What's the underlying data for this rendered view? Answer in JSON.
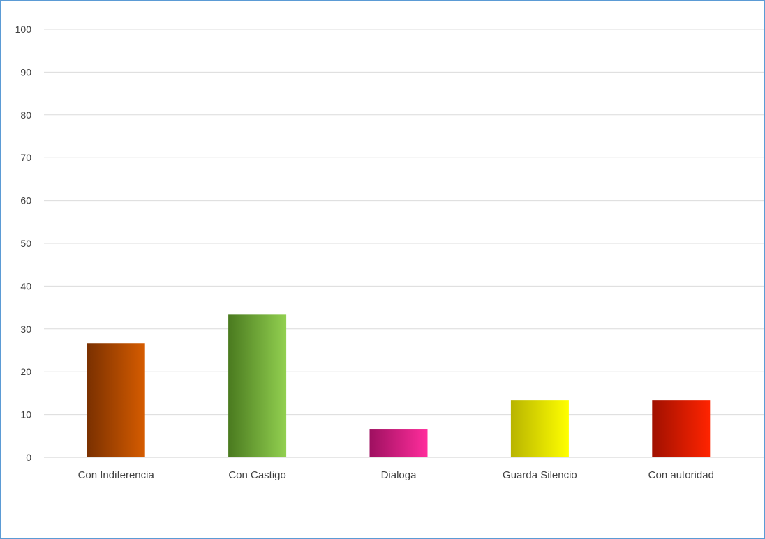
{
  "chart_data": {
    "type": "bar",
    "title": "",
    "xlabel": "",
    "ylabel": "",
    "categories": [
      "Con Indiferencia",
      "Con Castigo",
      "Dialoga",
      "Guarda Silencio",
      "Con autoridad"
    ],
    "values": [
      26.67,
      33.33,
      6.67,
      13.33,
      13.33
    ],
    "ylim": [
      0,
      100
    ],
    "yticks": [
      0,
      10,
      20,
      30,
      40,
      50,
      60,
      70,
      80,
      90,
      100
    ],
    "grid": true,
    "legend": "none",
    "bar_colors": [
      {
        "dark": "#7a3000",
        "light": "#d65c00"
      },
      {
        "dark": "#4a7a1f",
        "light": "#92d050"
      },
      {
        "dark": "#9e1060",
        "light": "#ff2d9c"
      },
      {
        "dark": "#b8b400",
        "light": "#ffff00"
      },
      {
        "dark": "#a01000",
        "light": "#ff2400"
      }
    ],
    "frame_color": "#5b9bd5"
  }
}
